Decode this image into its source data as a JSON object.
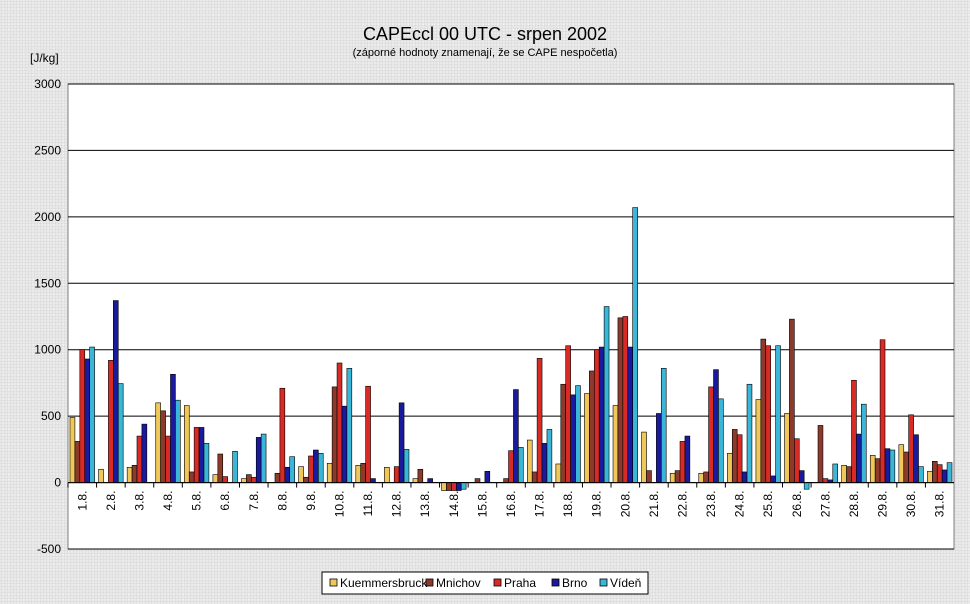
{
  "chart_data": {
    "type": "bar",
    "title": "CAPEccl 00 UTC - srpen 2002",
    "subtitle": "(záporné hodnoty znamenají, že se CAPE nespočetla)",
    "ylabel": "[J/kg]",
    "xlabel": "",
    "ylim": [
      -500,
      3000
    ],
    "yticks": [
      -500,
      0,
      500,
      1000,
      1500,
      2000,
      2500,
      3000
    ],
    "grid": true,
    "legend_position": "bottom",
    "categories": [
      "1.8.",
      "2.8.",
      "3.8.",
      "4.8.",
      "5.8.",
      "6.8.",
      "7.8.",
      "8.8.",
      "9.8.",
      "10.8.",
      "11.8.",
      "12.8.",
      "13.8.",
      "14.8.",
      "15.8.",
      "16.8.",
      "17.8.",
      "18.8.",
      "19.8.",
      "20.8.",
      "21.8.",
      "22.8.",
      "23.8.",
      "24.8.",
      "25.8.",
      "26.8.",
      "27.8.",
      "28.8.",
      "29.8.",
      "30.8.",
      "31.8."
    ],
    "series": [
      {
        "name": "Kuemmersbruck",
        "color": "#f0c85a",
        "values": [
          490,
          100,
          115,
          600,
          580,
          60,
          30,
          0,
          120,
          145,
          130,
          115,
          30,
          -60,
          0,
          0,
          320,
          140,
          670,
          580,
          380,
          70,
          70,
          220,
          625,
          520,
          0,
          130,
          205,
          285,
          85
        ]
      },
      {
        "name": "Mnichov",
        "color": "#8b3a2b",
        "values": [
          310,
          0,
          130,
          540,
          80,
          215,
          60,
          70,
          40,
          720,
          145,
          0,
          100,
          -60,
          30,
          30,
          80,
          740,
          840,
          1240,
          90,
          90,
          80,
          400,
          1080,
          1230,
          430,
          120,
          180,
          230,
          160
        ]
      },
      {
        "name": "Praha",
        "color": "#d92b26",
        "values": [
          1000,
          920,
          350,
          350,
          415,
          45,
          40,
          710,
          200,
          900,
          725,
          120,
          0,
          -60,
          0,
          240,
          935,
          1030,
          1000,
          1250,
          0,
          310,
          720,
          360,
          1030,
          330,
          30,
          770,
          1075,
          510,
          135
        ]
      },
      {
        "name": "Brno",
        "color": "#1a1a9e",
        "values": [
          930,
          1370,
          440,
          815,
          415,
          0,
          340,
          115,
          245,
          575,
          30,
          600,
          30,
          -60,
          85,
          700,
          295,
          660,
          1020,
          1020,
          520,
          350,
          850,
          80,
          50,
          90,
          20,
          365,
          255,
          360,
          95
        ]
      },
      {
        "name": "Vídeň",
        "color": "#3ab6d8",
        "values": [
          1020,
          745,
          0,
          620,
          295,
          235,
          365,
          195,
          220,
          860,
          0,
          250,
          0,
          -50,
          0,
          265,
          400,
          730,
          1325,
          2070,
          860,
          0,
          630,
          740,
          1030,
          -50,
          140,
          590,
          245,
          120,
          150
        ]
      }
    ]
  }
}
